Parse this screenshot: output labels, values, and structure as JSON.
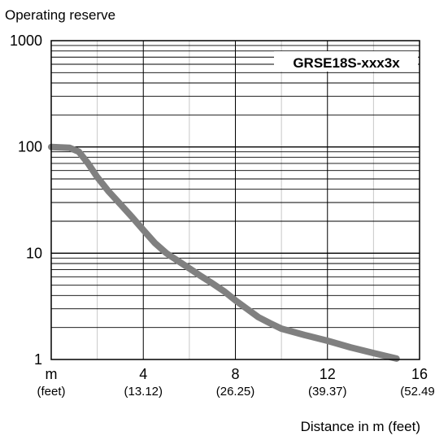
{
  "chart_data": {
    "type": "line",
    "title": "",
    "ylabel": "Operating reserve",
    "xlabel": "Distance in m (feet)",
    "yscale": "log",
    "ylim": [
      1,
      1000
    ],
    "xlim": [
      0,
      16
    ],
    "y_ticks": [
      {
        "value": 1,
        "label": "1"
      },
      {
        "value": 10,
        "label": "10"
      },
      {
        "value": 100,
        "label": "100"
      },
      {
        "value": 1000,
        "label": "1000"
      }
    ],
    "x_ticks": [
      {
        "value": 0,
        "label": "m",
        "sublabel": "(feet)"
      },
      {
        "value": 4,
        "label": "4",
        "sublabel": "(13.12)"
      },
      {
        "value": 8,
        "label": "8",
        "sublabel": "(26.25)"
      },
      {
        "value": 12,
        "label": "12",
        "sublabel": "(39.37)"
      },
      {
        "value": 16,
        "label": "16",
        "sublabel": "(52.49)"
      }
    ],
    "minor_x_gridlines": [
      2,
      6,
      10,
      14
    ],
    "grid": true,
    "series": [
      {
        "name": "GRSE18S-xxx3x",
        "color": "#808080",
        "x": [
          0,
          0.8,
          1.2,
          1.6,
          2.0,
          2.5,
          3.0,
          3.5,
          4.0,
          4.5,
          5.0,
          5.5,
          6.0,
          6.5,
          7.0,
          7.5,
          8.0,
          8.5,
          9.0,
          9.5,
          10.0,
          11.0,
          12.0,
          13.0,
          14.0,
          15.0
        ],
        "y": [
          100,
          98,
          90,
          70,
          52,
          38,
          29,
          22,
          16.5,
          12.5,
          10,
          8.5,
          7.2,
          6.1,
          5.2,
          4.4,
          3.6,
          3.0,
          2.5,
          2.2,
          1.95,
          1.7,
          1.5,
          1.3,
          1.15,
          1.02
        ]
      }
    ],
    "legend": {
      "label": "GRSE18S-xxx3x",
      "position": "top-right"
    }
  }
}
